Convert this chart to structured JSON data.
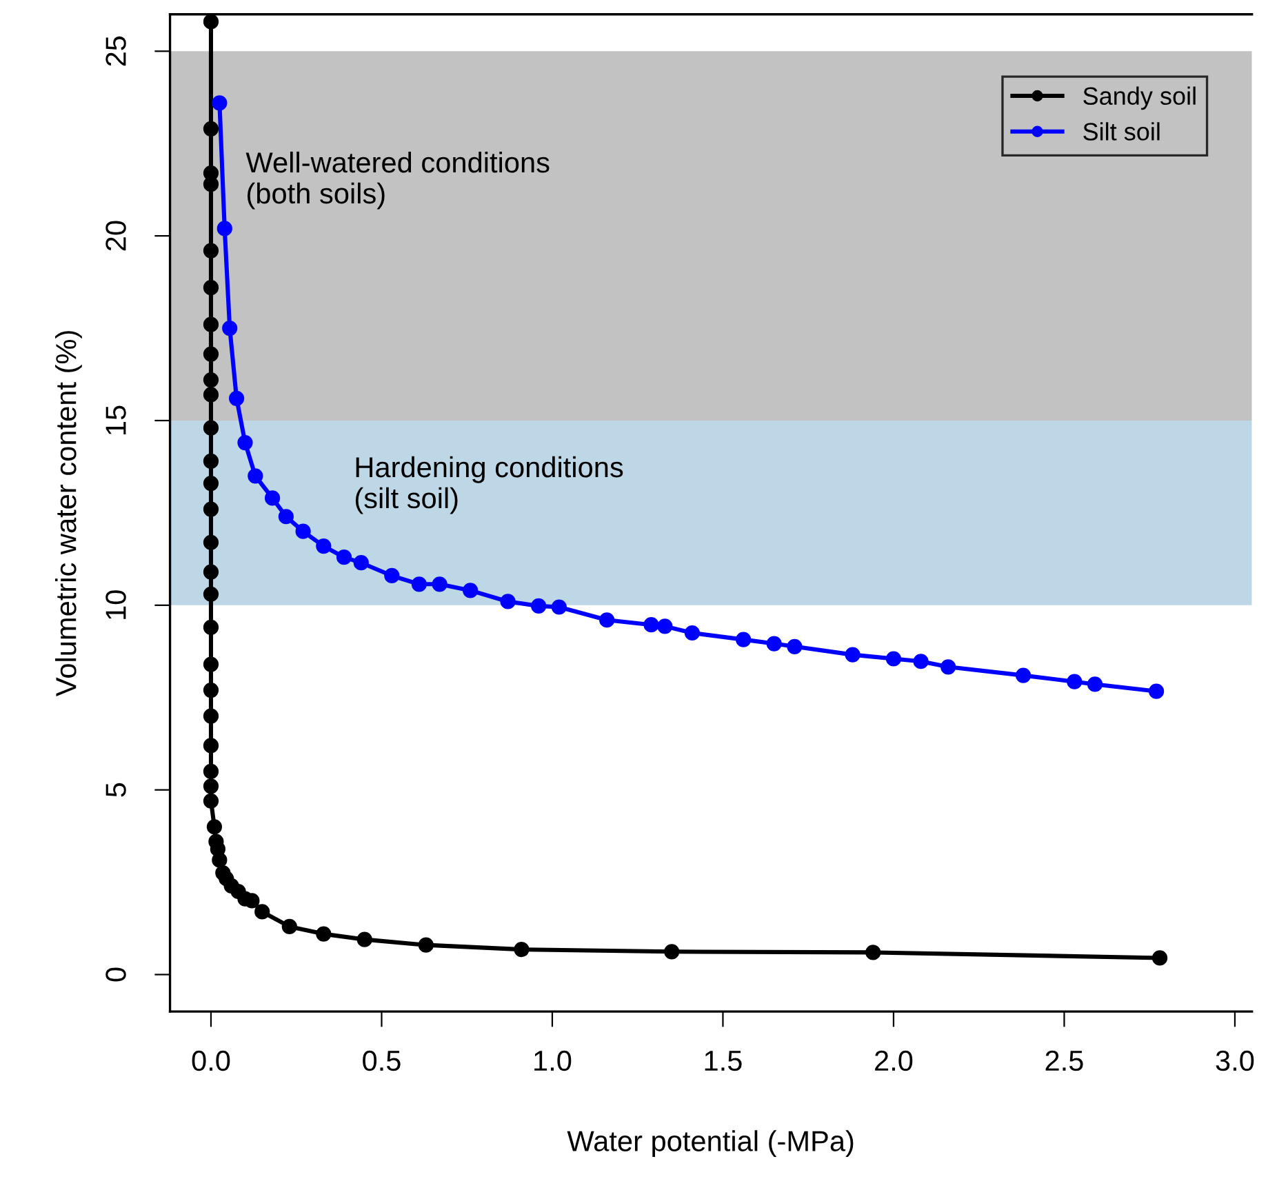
{
  "chart_data": {
    "type": "line",
    "xlabel": "Water potential (-MPa)",
    "ylabel": "Volumetric water content (%)",
    "xlim": [
      -0.12,
      3.05
    ],
    "ylim": [
      -1,
      26
    ],
    "xticks": [
      {
        "value": 0,
        "label": "0.0"
      },
      {
        "value": 0.5,
        "label": "0.5"
      },
      {
        "value": 1,
        "label": "1.0"
      },
      {
        "value": 1.5,
        "label": "1.5"
      },
      {
        "value": 2,
        "label": "2.0"
      },
      {
        "value": 2.5,
        "label": "2.5"
      },
      {
        "value": 3,
        "label": "3.0"
      }
    ],
    "yticks": [
      0,
      5,
      10,
      15,
      20,
      25
    ],
    "grid": false,
    "legend": "top right",
    "marker": "circle",
    "line_style": "solid",
    "bands": [
      {
        "axis": "y",
        "from": 15,
        "to": 25,
        "label": "Well-watered conditions\n(both soils)",
        "color": "#c2c2c2"
      },
      {
        "axis": "y",
        "from": 10,
        "to": 15,
        "label": "Hardening conditions\n(silt soil)",
        "color": "#bed7e6"
      }
    ],
    "series": [
      {
        "name": "Sandy soil",
        "color": "#000000",
        "x": [
          0,
          0,
          0,
          0,
          0,
          0,
          0,
          0,
          0,
          0,
          0,
          0,
          0,
          0,
          0,
          0,
          0,
          0,
          0,
          0,
          0,
          0,
          0,
          0,
          0,
          0.01,
          0.015,
          0.02,
          0.025,
          0.035,
          0.045,
          0.06,
          0.08,
          0.1,
          0.12,
          0.15,
          0.23,
          0.33,
          0.45,
          0.63,
          0.91,
          1.35,
          1.94,
          2.78
        ],
        "values": [
          25.8,
          22.9,
          21.7,
          21.4,
          19.6,
          18.6,
          17.6,
          16.8,
          16.1,
          15.7,
          14.8,
          13.9,
          13.3,
          12.6,
          11.7,
          10.9,
          10.3,
          9.4,
          8.4,
          7.7,
          7.0,
          6.2,
          5.5,
          5.1,
          4.7,
          4.0,
          3.6,
          3.4,
          3.1,
          2.75,
          2.6,
          2.4,
          2.25,
          2.05,
          2.0,
          1.7,
          1.3,
          1.1,
          0.95,
          0.8,
          0.68,
          0.62,
          0.6,
          0.45
        ]
      },
      {
        "name": "Silt soil",
        "color": "#0000ff",
        "x": [
          0.025,
          0.04,
          0.055,
          0.075,
          0.1,
          0.13,
          0.18,
          0.22,
          0.27,
          0.33,
          0.39,
          0.44,
          0.53,
          0.61,
          0.67,
          0.76,
          0.87,
          0.96,
          1.02,
          1.16,
          1.29,
          1.33,
          1.41,
          1.56,
          1.65,
          1.71,
          1.88,
          2.0,
          2.08,
          2.16,
          2.38,
          2.53,
          2.59,
          2.77
        ],
        "values": [
          23.6,
          20.2,
          17.5,
          15.6,
          14.4,
          13.5,
          12.9,
          12.4,
          12.0,
          11.6,
          11.3,
          11.15,
          10.8,
          10.57,
          10.57,
          10.4,
          10.1,
          9.98,
          9.95,
          9.6,
          9.47,
          9.43,
          9.25,
          9.07,
          8.96,
          8.88,
          8.66,
          8.55,
          8.48,
          8.33,
          8.1,
          7.93,
          7.86,
          7.67
        ]
      }
    ]
  }
}
